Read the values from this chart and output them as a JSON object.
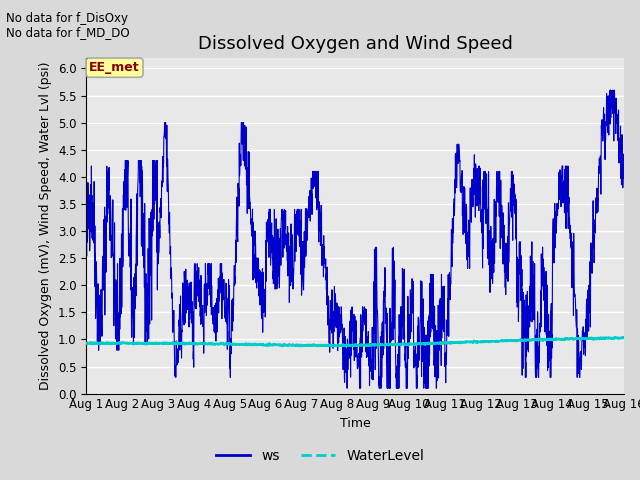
{
  "title": "Dissolved Oxygen and Wind Speed",
  "ylabel": "Dissolved Oxygen (mV), Wind Speed, Water Lvl (psi)",
  "xlabel": "Time",
  "ylim": [
    0.0,
    6.2
  ],
  "yticks": [
    0.0,
    0.5,
    1.0,
    1.5,
    2.0,
    2.5,
    3.0,
    3.5,
    4.0,
    4.5,
    5.0,
    5.5,
    6.0
  ],
  "xtick_labels": [
    "Aug 1",
    "Aug 2",
    "Aug 3",
    "Aug 4",
    "Aug 5",
    "Aug 6",
    "Aug 7",
    "Aug 8",
    "Aug 9",
    "Aug 10",
    "Aug 11",
    "Aug 12",
    "Aug 13",
    "Aug 14",
    "Aug 15",
    "Aug 16"
  ],
  "no_data_text1": "No data for f_DisOxy",
  "no_data_text2": "No data for f_MD_DO",
  "annotation_text": "EE_met",
  "annotation_box_facecolor": "#ffff99",
  "annotation_text_color": "#8b0000",
  "annotation_border_color": "#aaaaaa",
  "fig_facecolor": "#d9d9d9",
  "plot_facecolor": "#e8e8e8",
  "ws_color": "#0000cc",
  "water_color": "#00cccc",
  "ws_linewidth": 0.8,
  "water_linewidth": 1.5,
  "grid_color": "#ffffff",
  "title_fontsize": 13,
  "label_fontsize": 9,
  "tick_fontsize": 8.5
}
